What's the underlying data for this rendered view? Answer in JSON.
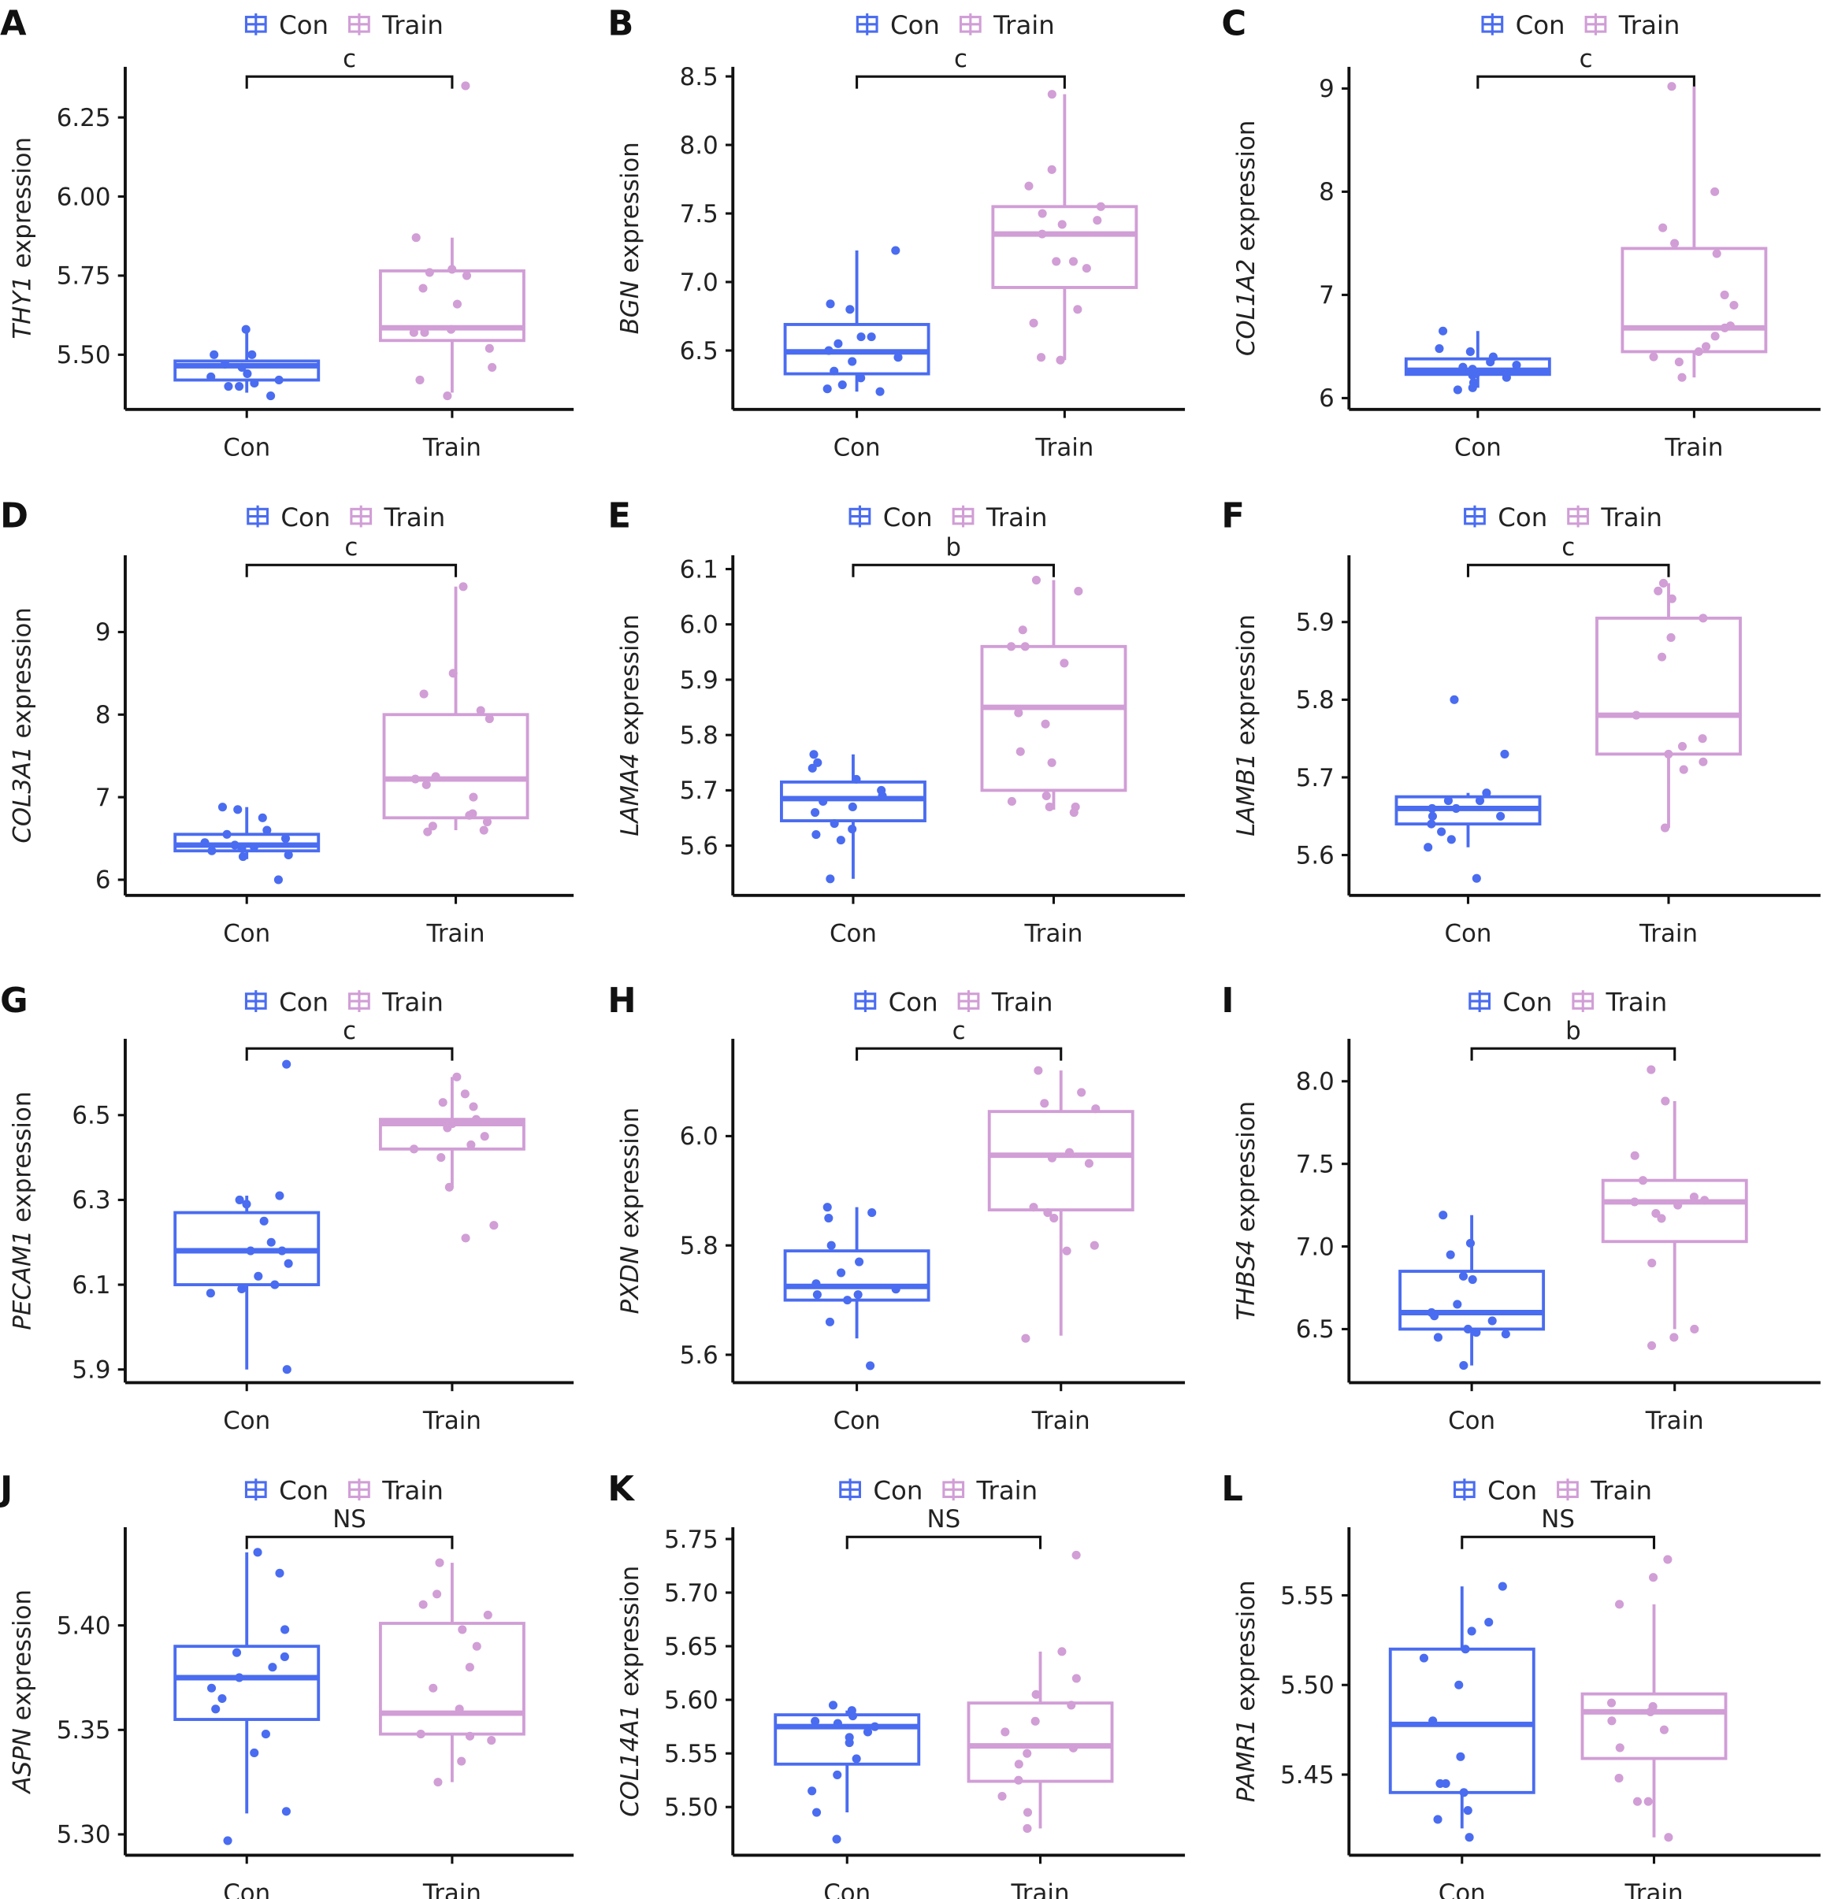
{
  "colors": {
    "Con": "#4a6cf0",
    "Train": "#d19ed6",
    "axis": "#111111"
  },
  "legend": {
    "items": [
      "Con",
      "Train"
    ],
    "placement": "top-center"
  },
  "chart_data": [
    {
      "type": "box",
      "panel": "A",
      "gene": "THY1",
      "ylabel_suffix": " expression",
      "categories": [
        "Con",
        "Train"
      ],
      "ylim": [
        5.327,
        6.41
      ],
      "yticks": [
        5.5,
        5.75,
        6.0,
        6.25
      ],
      "ytick_labels": [
        "5.50",
        "5.75",
        "6.00",
        "6.25"
      ],
      "significance": "c",
      "series": [
        {
          "name": "Con",
          "box": {
            "min": 5.38,
            "q1": 5.42,
            "median": 5.465,
            "q3": 5.48,
            "max": 5.58
          },
          "points": [
            5.58,
            5.5,
            5.5,
            5.47,
            5.46,
            5.44,
            5.43,
            5.42,
            5.41,
            5.4,
            5.4,
            5.37
          ]
        },
        {
          "name": "Train",
          "box": {
            "min": 5.38,
            "q1": 5.545,
            "median": 5.585,
            "q3": 5.765,
            "max": 5.87
          },
          "points": [
            6.35,
            5.87,
            5.77,
            5.76,
            5.75,
            5.71,
            5.66,
            5.58,
            5.57,
            5.57,
            5.52,
            5.46,
            5.42,
            5.37
          ]
        }
      ]
    },
    {
      "type": "box",
      "panel": "B",
      "gene": "BGN",
      "ylabel_suffix": " expression",
      "categories": [
        "Con",
        "Train"
      ],
      "ylim": [
        6.07,
        8.57
      ],
      "yticks": [
        6.5,
        7.0,
        7.5,
        8.0,
        8.5
      ],
      "ytick_labels": [
        "6.5",
        "7.0",
        "7.5",
        "8.0",
        "8.5"
      ],
      "significance": "c",
      "series": [
        {
          "name": "Con",
          "box": {
            "min": 6.2,
            "q1": 6.33,
            "median": 6.49,
            "q3": 6.69,
            "max": 7.23
          },
          "points": [
            7.23,
            6.84,
            6.8,
            6.6,
            6.6,
            6.55,
            6.5,
            6.45,
            6.42,
            6.35,
            6.3,
            6.25,
            6.22,
            6.2
          ]
        },
        {
          "name": "Train",
          "box": {
            "min": 6.43,
            "q1": 6.96,
            "median": 7.35,
            "q3": 7.55,
            "max": 8.37
          },
          "points": [
            8.37,
            7.82,
            7.7,
            7.55,
            7.5,
            7.45,
            7.42,
            7.35,
            7.15,
            7.15,
            7.1,
            6.8,
            6.7,
            6.45,
            6.43
          ]
        }
      ]
    },
    {
      "type": "box",
      "panel": "C",
      "gene": "COL1A2",
      "ylabel_suffix": " expression",
      "categories": [
        "Con",
        "Train"
      ],
      "ylim": [
        5.89,
        9.21
      ],
      "yticks": [
        6,
        7,
        8,
        9
      ],
      "ytick_labels": [
        "6",
        "7",
        "8",
        "9"
      ],
      "significance": "c",
      "series": [
        {
          "name": "Con",
          "box": {
            "min": 6.1,
            "q1": 6.23,
            "median": 6.27,
            "q3": 6.38,
            "max": 6.65
          },
          "points": [
            6.65,
            6.48,
            6.45,
            6.4,
            6.35,
            6.32,
            6.3,
            6.28,
            6.25,
            6.22,
            6.2,
            6.15,
            6.1,
            6.08
          ]
        },
        {
          "name": "Train",
          "box": {
            "min": 6.2,
            "q1": 6.45,
            "median": 6.68,
            "q3": 7.45,
            "max": 9.02
          },
          "points": [
            9.02,
            8.0,
            7.65,
            7.5,
            7.4,
            7.0,
            6.9,
            6.7,
            6.68,
            6.6,
            6.5,
            6.45,
            6.4,
            6.35,
            6.2
          ]
        }
      ]
    },
    {
      "type": "box",
      "panel": "D",
      "gene": "COL3A1",
      "ylabel_suffix": " expression",
      "categories": [
        "Con",
        "Train"
      ],
      "ylim": [
        5.81,
        9.93
      ],
      "yticks": [
        6,
        7,
        8,
        9
      ],
      "ytick_labels": [
        "6",
        "7",
        "8",
        "9"
      ],
      "significance": "c",
      "series": [
        {
          "name": "Con",
          "box": {
            "min": 6.25,
            "q1": 6.35,
            "median": 6.42,
            "q3": 6.55,
            "max": 6.88
          },
          "points": [
            6.88,
            6.85,
            6.75,
            6.6,
            6.55,
            6.5,
            6.45,
            6.42,
            6.4,
            6.38,
            6.35,
            6.3,
            6.28,
            6.0
          ]
        },
        {
          "name": "Train",
          "box": {
            "min": 6.6,
            "q1": 6.75,
            "median": 7.22,
            "q3": 8.0,
            "max": 9.55
          },
          "points": [
            9.55,
            8.5,
            8.25,
            8.05,
            7.95,
            7.25,
            7.22,
            7.15,
            7.0,
            6.8,
            6.78,
            6.7,
            6.65,
            6.6,
            6.58
          ]
        }
      ]
    },
    {
      "type": "box",
      "panel": "E",
      "gene": "LAMA4",
      "ylabel_suffix": " expression",
      "categories": [
        "Con",
        "Train"
      ],
      "ylim": [
        5.51,
        6.125
      ],
      "yticks": [
        5.6,
        5.7,
        5.8,
        5.9,
        6.0,
        6.1
      ],
      "ytick_labels": [
        "5.6",
        "5.7",
        "5.8",
        "5.9",
        "6.0",
        "6.1"
      ],
      "significance": "b",
      "series": [
        {
          "name": "Con",
          "box": {
            "min": 5.54,
            "q1": 5.645,
            "median": 5.685,
            "q3": 5.715,
            "max": 5.765
          },
          "points": [
            5.765,
            5.75,
            5.74,
            5.72,
            5.7,
            5.69,
            5.68,
            5.67,
            5.66,
            5.64,
            5.63,
            5.62,
            5.61,
            5.54
          ]
        },
        {
          "name": "Train",
          "box": {
            "min": 5.665,
            "q1": 5.7,
            "median": 5.85,
            "q3": 5.96,
            "max": 6.08
          },
          "points": [
            6.08,
            6.06,
            5.99,
            5.96,
            5.96,
            5.93,
            5.84,
            5.82,
            5.77,
            5.75,
            5.69,
            5.68,
            5.67,
            5.67,
            5.66
          ]
        }
      ]
    },
    {
      "type": "box",
      "panel": "F",
      "gene": "LAMB1",
      "ylabel_suffix": " expression",
      "categories": [
        "Con",
        "Train"
      ],
      "ylim": [
        5.548,
        5.986
      ],
      "yticks": [
        5.6,
        5.7,
        5.8,
        5.9
      ],
      "ytick_labels": [
        "5.6",
        "5.7",
        "5.8",
        "5.9"
      ],
      "significance": "c",
      "series": [
        {
          "name": "Con",
          "box": {
            "min": 5.61,
            "q1": 5.64,
            "median": 5.66,
            "q3": 5.675,
            "max": 5.68
          },
          "points": [
            5.8,
            5.73,
            5.68,
            5.67,
            5.67,
            5.66,
            5.66,
            5.65,
            5.65,
            5.64,
            5.63,
            5.62,
            5.61,
            5.57
          ]
        },
        {
          "name": "Train",
          "box": {
            "min": 5.635,
            "q1": 5.73,
            "median": 5.78,
            "q3": 5.905,
            "max": 5.95
          },
          "points": [
            5.95,
            5.94,
            5.93,
            5.905,
            5.88,
            5.855,
            5.78,
            5.75,
            5.74,
            5.73,
            5.72,
            5.71,
            5.635
          ]
        }
      ]
    },
    {
      "type": "box",
      "panel": "G",
      "gene": "PECAM1",
      "ylabel_suffix": " expression",
      "categories": [
        "Con",
        "Train"
      ],
      "ylim": [
        5.869,
        6.68
      ],
      "yticks": [
        5.9,
        6.1,
        6.3,
        6.5
      ],
      "ytick_labels": [
        "5.9",
        "6.1",
        "6.3",
        "6.5"
      ],
      "significance": "c",
      "series": [
        {
          "name": "Con",
          "box": {
            "min": 5.9,
            "q1": 6.1,
            "median": 6.18,
            "q3": 6.27,
            "max": 6.31
          },
          "points": [
            6.62,
            6.31,
            6.3,
            6.29,
            6.25,
            6.2,
            6.18,
            6.18,
            6.15,
            6.12,
            6.1,
            6.09,
            6.08,
            5.9
          ]
        },
        {
          "name": "Train",
          "box": {
            "min": 6.33,
            "q1": 6.42,
            "median": 6.48,
            "q3": 6.49,
            "max": 6.59
          },
          "points": [
            6.59,
            6.55,
            6.53,
            6.52,
            6.49,
            6.48,
            6.47,
            6.45,
            6.43,
            6.42,
            6.4,
            6.33,
            6.24,
            6.21
          ]
        }
      ]
    },
    {
      "type": "box",
      "panel": "H",
      "gene": "PXDN",
      "ylabel_suffix": " expression",
      "categories": [
        "Con",
        "Train"
      ],
      "ylim": [
        5.549,
        6.178
      ],
      "yticks": [
        5.6,
        5.8,
        6.0
      ],
      "ytick_labels": [
        "5.6",
        "5.8",
        "6.0"
      ],
      "significance": "c",
      "series": [
        {
          "name": "Con",
          "box": {
            "min": 5.63,
            "q1": 5.7,
            "median": 5.725,
            "q3": 5.79,
            "max": 5.87
          },
          "points": [
            5.87,
            5.86,
            5.85,
            5.8,
            5.77,
            5.75,
            5.73,
            5.72,
            5.71,
            5.71,
            5.7,
            5.66,
            5.58
          ]
        },
        {
          "name": "Train",
          "box": {
            "min": 5.635,
            "q1": 5.865,
            "median": 5.965,
            "q3": 6.045,
            "max": 6.12
          },
          "points": [
            6.12,
            6.08,
            6.06,
            6.05,
            5.97,
            5.96,
            5.95,
            5.87,
            5.86,
            5.85,
            5.8,
            5.79,
            5.63
          ]
        }
      ]
    },
    {
      "type": "box",
      "panel": "I",
      "gene": "THBS4",
      "ylabel_suffix": " expression",
      "categories": [
        "Con",
        "Train"
      ],
      "ylim": [
        6.176,
        8.257
      ],
      "yticks": [
        6.5,
        7.0,
        7.5,
        8.0
      ],
      "ytick_labels": [
        "6.5",
        "7.0",
        "7.5",
        "8.0"
      ],
      "significance": "b",
      "series": [
        {
          "name": "Con",
          "box": {
            "min": 6.28,
            "q1": 6.5,
            "median": 6.6,
            "q3": 6.85,
            "max": 7.19
          },
          "points": [
            7.19,
            7.02,
            6.95,
            6.82,
            6.8,
            6.65,
            6.6,
            6.58,
            6.55,
            6.5,
            6.48,
            6.47,
            6.45,
            6.28
          ]
        },
        {
          "name": "Train",
          "box": {
            "min": 6.5,
            "q1": 7.03,
            "median": 7.27,
            "q3": 7.4,
            "max": 7.88
          },
          "points": [
            8.07,
            7.88,
            7.55,
            7.4,
            7.3,
            7.28,
            7.27,
            7.25,
            7.2,
            7.17,
            6.9,
            6.5,
            6.45,
            6.4
          ]
        }
      ]
    },
    {
      "type": "box",
      "panel": "J",
      "gene": "ASPN",
      "ylabel_suffix": " expression",
      "categories": [
        "Con",
        "Train"
      ],
      "ylim": [
        5.29,
        5.447
      ],
      "yticks": [
        5.3,
        5.35,
        5.4
      ],
      "ytick_labels": [
        "5.30",
        "5.35",
        "5.40"
      ],
      "significance": "NS",
      "series": [
        {
          "name": "Con",
          "box": {
            "min": 5.31,
            "q1": 5.355,
            "median": 5.375,
            "q3": 5.39,
            "max": 5.435
          },
          "points": [
            5.435,
            5.425,
            5.398,
            5.387,
            5.385,
            5.38,
            5.375,
            5.37,
            5.365,
            5.36,
            5.348,
            5.339,
            5.311,
            5.297
          ]
        },
        {
          "name": "Train",
          "box": {
            "min": 5.325,
            "q1": 5.348,
            "median": 5.358,
            "q3": 5.401,
            "max": 5.43
          },
          "points": [
            5.43,
            5.415,
            5.41,
            5.405,
            5.398,
            5.39,
            5.38,
            5.37,
            5.36,
            5.348,
            5.347,
            5.345,
            5.335,
            5.325
          ]
        }
      ]
    },
    {
      "type": "box",
      "panel": "K",
      "gene": "COL14A1",
      "ylabel_suffix": " expression",
      "categories": [
        "Con",
        "Train"
      ],
      "ylim": [
        5.455,
        5.761
      ],
      "yticks": [
        5.5,
        5.55,
        5.6,
        5.65,
        5.7,
        5.75
      ],
      "ytick_labels": [
        "5.50",
        "5.55",
        "5.60",
        "5.65",
        "5.70",
        "5.75"
      ],
      "significance": "NS",
      "series": [
        {
          "name": "Con",
          "box": {
            "min": 5.495,
            "q1": 5.54,
            "median": 5.575,
            "q3": 5.586,
            "max": 5.59
          },
          "points": [
            5.595,
            5.59,
            5.585,
            5.58,
            5.578,
            5.575,
            5.57,
            5.565,
            5.56,
            5.545,
            5.53,
            5.515,
            5.495,
            5.47
          ]
        },
        {
          "name": "Train",
          "box": {
            "min": 5.48,
            "q1": 5.524,
            "median": 5.557,
            "q3": 5.597,
            "max": 5.645
          },
          "points": [
            5.735,
            5.645,
            5.62,
            5.605,
            5.595,
            5.58,
            5.57,
            5.555,
            5.55,
            5.54,
            5.525,
            5.51,
            5.495,
            5.48
          ]
        }
      ]
    },
    {
      "type": "box",
      "panel": "L",
      "gene": "PAMR1",
      "ylabel_suffix": " expression",
      "categories": [
        "Con",
        "Train"
      ],
      "ylim": [
        5.405,
        5.588
      ],
      "yticks": [
        5.45,
        5.5,
        5.55
      ],
      "ytick_labels": [
        "5.45",
        "5.50",
        "5.55"
      ],
      "significance": "NS",
      "series": [
        {
          "name": "Con",
          "box": {
            "min": 5.42,
            "q1": 5.44,
            "median": 5.478,
            "q3": 5.52,
            "max": 5.555
          },
          "points": [
            5.555,
            5.535,
            5.53,
            5.52,
            5.515,
            5.5,
            5.48,
            5.46,
            5.445,
            5.445,
            5.44,
            5.43,
            5.425,
            5.415
          ]
        },
        {
          "name": "Train",
          "box": {
            "min": 5.415,
            "q1": 5.459,
            "median": 5.485,
            "q3": 5.495,
            "max": 5.545
          },
          "points": [
            5.57,
            5.56,
            5.545,
            5.49,
            5.488,
            5.485,
            5.48,
            5.475,
            5.465,
            5.448,
            5.435,
            5.435,
            5.415
          ]
        }
      ]
    }
  ]
}
